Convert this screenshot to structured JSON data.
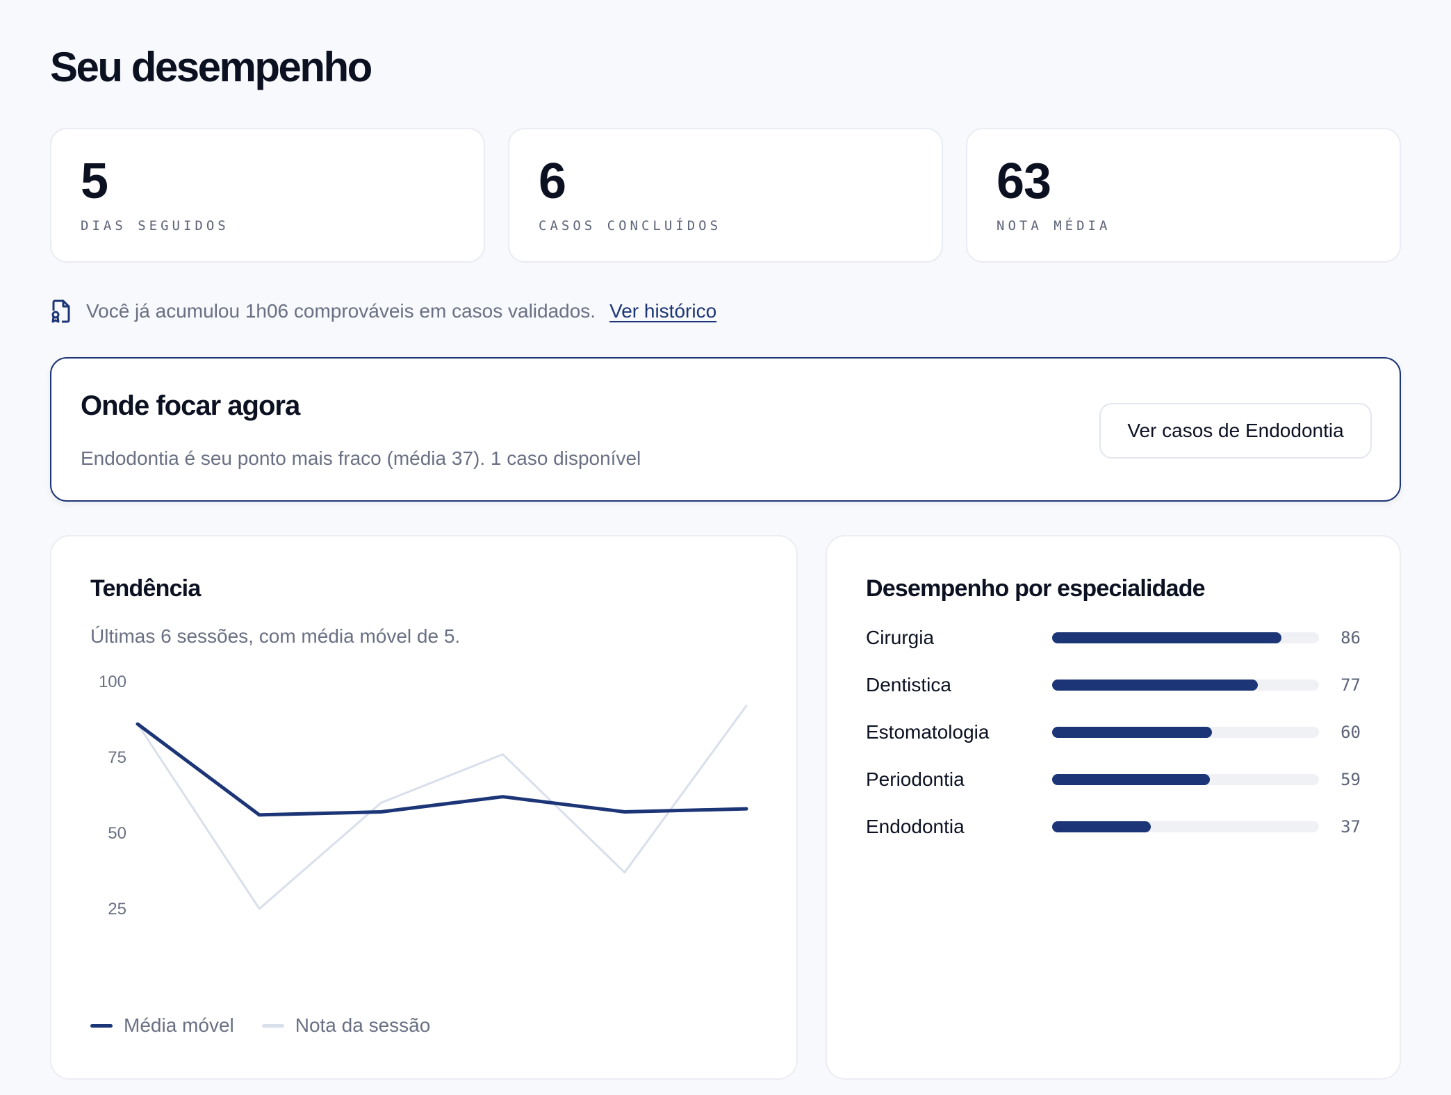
{
  "page": {
    "title": "Seu desempenho"
  },
  "stats": [
    {
      "value": "5",
      "label": "DIAS SEGUIDOS"
    },
    {
      "value": "6",
      "label": "CASOS CONCLUÍDOS"
    },
    {
      "value": "63",
      "label": "NOTA MÉDIA"
    }
  ],
  "info": {
    "text": "Você já acumulou 1h06 comprováveis em casos validados.",
    "link": "Ver histórico",
    "icon": "file-certificate-icon"
  },
  "focus": {
    "title": "Onde focar agora",
    "description": "Endodontia é seu ponto mais fraco (média 37). 1 caso disponível",
    "button": "Ver casos de Endodontia"
  },
  "trend": {
    "title": "Tendência",
    "subtitle": "Últimas 6 sessões, com média móvel de 5."
  },
  "chart_data": {
    "type": "line",
    "x": [
      1,
      2,
      3,
      4,
      5,
      6
    ],
    "y_ticks": [
      "100",
      "75",
      "50",
      "25"
    ],
    "ylim": [
      0,
      100
    ],
    "grid": false,
    "legend_position": "bottom-left",
    "series": [
      {
        "name": "Média móvel",
        "color": "#1c3576",
        "values": [
          86,
          56,
          57,
          62,
          57,
          58
        ]
      },
      {
        "name": "Nota da sessão",
        "color": "#d9dfeb",
        "values": [
          86,
          25,
          60,
          76,
          37,
          92
        ]
      }
    ]
  },
  "specialties": {
    "title": "Desempenho por especialidade",
    "bar_color": "#1c3576",
    "items": [
      {
        "name": "Cirurgia",
        "score": "86",
        "value": 86
      },
      {
        "name": "Dentistica",
        "score": "77",
        "value": 77
      },
      {
        "name": "Estomatologia",
        "score": "60",
        "value": 60
      },
      {
        "name": "Periodontia",
        "score": "59",
        "value": 59
      },
      {
        "name": "Endodontia",
        "score": "37",
        "value": 37
      }
    ]
  }
}
